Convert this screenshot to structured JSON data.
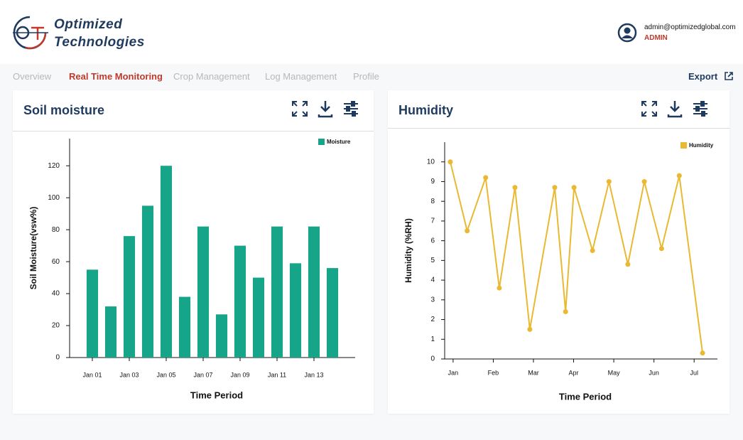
{
  "header": {
    "brand": [
      "Optimized",
      "Technologies"
    ],
    "email": "admin@optimizedglobal.com",
    "role": "ADMIN"
  },
  "nav": {
    "tabs": [
      "Overview",
      "Real Time Monitoring",
      "Crop Management",
      "Log Management",
      "Profile"
    ],
    "active": 1,
    "export": "Export"
  },
  "chart_data": [
    {
      "type": "bar",
      "title": "Soil moisture",
      "xlabel": "Time Period",
      "ylabel": "Soil Moisture(vsw%)",
      "categories": [
        "Jan 01",
        null,
        "Jan 03",
        null,
        "Jan 05",
        null,
        "Jan 07",
        null,
        "Jan 09",
        null,
        "Jan 11",
        null,
        "Jan 13",
        null
      ],
      "series": [
        {
          "name": "Moisture",
          "color": "#17a589",
          "values": [
            55,
            32,
            76,
            95,
            120,
            38,
            82,
            27,
            70,
            50,
            82,
            59,
            82,
            56
          ]
        }
      ],
      "ylim": [
        0,
        137
      ],
      "yticks": [
        0,
        20,
        40,
        60,
        80,
        100,
        120
      ],
      "legend": "upper right"
    },
    {
      "type": "line",
      "title": "Humidity",
      "xlabel": "Time Period",
      "ylabel": "Humidity (%RH)",
      "x": [
        -0.07,
        0.35,
        0.81,
        1.15,
        1.54,
        1.91,
        2.53,
        2.8,
        3.01,
        3.47,
        3.88,
        4.35,
        4.76,
        5.19,
        5.63,
        6.21
      ],
      "series": [
        {
          "name": "Humidity",
          "color": "#e8b931",
          "values": [
            10,
            6.5,
            9.2,
            3.6,
            8.7,
            1.5,
            8.7,
            2.4,
            8.7,
            5.5,
            9.0,
            4.8,
            9.0,
            5.6,
            9.3,
            0.3
          ]
        }
      ],
      "xlim": [
        -0.21,
        6.58
      ],
      "xticks": [
        {
          "value": 0,
          "label": "Jan"
        },
        {
          "value": 1,
          "label": "Feb"
        },
        {
          "value": 2,
          "label": "Mar"
        },
        {
          "value": 3,
          "label": "Apr"
        },
        {
          "value": 4,
          "label": "May"
        },
        {
          "value": 5,
          "label": "Jun"
        },
        {
          "value": 6,
          "label": "Jul"
        }
      ],
      "ylim": [
        0,
        11
      ],
      "yticks": [
        0,
        1,
        2,
        3,
        4,
        5,
        6,
        7,
        8,
        9,
        10
      ],
      "legend": "upper right"
    }
  ]
}
